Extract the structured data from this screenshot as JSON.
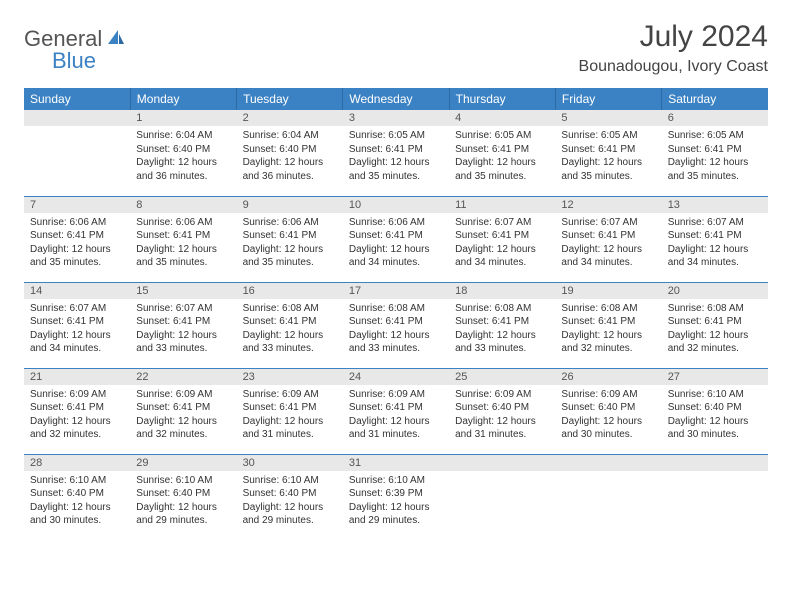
{
  "logo": {
    "word1": "General",
    "word2": "Blue"
  },
  "title": "July 2024",
  "location": "Bounadougou, Ivory Coast",
  "colors": {
    "header_bg": "#3b82c4",
    "header_text": "#ffffff",
    "daynum_bg": "#e8e8e8",
    "border": "#3b82c4",
    "body_text": "#333333",
    "logo_gray": "#555555",
    "logo_blue": "#3b82c4"
  },
  "weekdays": [
    "Sunday",
    "Monday",
    "Tuesday",
    "Wednesday",
    "Thursday",
    "Friday",
    "Saturday"
  ],
  "layout": {
    "columns": 7,
    "rows": 5,
    "first_day_col": 1
  },
  "days": [
    {
      "n": "1",
      "sunrise": "Sunrise: 6:04 AM",
      "sunset": "Sunset: 6:40 PM",
      "day": "Daylight: 12 hours and 36 minutes."
    },
    {
      "n": "2",
      "sunrise": "Sunrise: 6:04 AM",
      "sunset": "Sunset: 6:40 PM",
      "day": "Daylight: 12 hours and 36 minutes."
    },
    {
      "n": "3",
      "sunrise": "Sunrise: 6:05 AM",
      "sunset": "Sunset: 6:41 PM",
      "day": "Daylight: 12 hours and 35 minutes."
    },
    {
      "n": "4",
      "sunrise": "Sunrise: 6:05 AM",
      "sunset": "Sunset: 6:41 PM",
      "day": "Daylight: 12 hours and 35 minutes."
    },
    {
      "n": "5",
      "sunrise": "Sunrise: 6:05 AM",
      "sunset": "Sunset: 6:41 PM",
      "day": "Daylight: 12 hours and 35 minutes."
    },
    {
      "n": "6",
      "sunrise": "Sunrise: 6:05 AM",
      "sunset": "Sunset: 6:41 PM",
      "day": "Daylight: 12 hours and 35 minutes."
    },
    {
      "n": "7",
      "sunrise": "Sunrise: 6:06 AM",
      "sunset": "Sunset: 6:41 PM",
      "day": "Daylight: 12 hours and 35 minutes."
    },
    {
      "n": "8",
      "sunrise": "Sunrise: 6:06 AM",
      "sunset": "Sunset: 6:41 PM",
      "day": "Daylight: 12 hours and 35 minutes."
    },
    {
      "n": "9",
      "sunrise": "Sunrise: 6:06 AM",
      "sunset": "Sunset: 6:41 PM",
      "day": "Daylight: 12 hours and 35 minutes."
    },
    {
      "n": "10",
      "sunrise": "Sunrise: 6:06 AM",
      "sunset": "Sunset: 6:41 PM",
      "day": "Daylight: 12 hours and 34 minutes."
    },
    {
      "n": "11",
      "sunrise": "Sunrise: 6:07 AM",
      "sunset": "Sunset: 6:41 PM",
      "day": "Daylight: 12 hours and 34 minutes."
    },
    {
      "n": "12",
      "sunrise": "Sunrise: 6:07 AM",
      "sunset": "Sunset: 6:41 PM",
      "day": "Daylight: 12 hours and 34 minutes."
    },
    {
      "n": "13",
      "sunrise": "Sunrise: 6:07 AM",
      "sunset": "Sunset: 6:41 PM",
      "day": "Daylight: 12 hours and 34 minutes."
    },
    {
      "n": "14",
      "sunrise": "Sunrise: 6:07 AM",
      "sunset": "Sunset: 6:41 PM",
      "day": "Daylight: 12 hours and 34 minutes."
    },
    {
      "n": "15",
      "sunrise": "Sunrise: 6:07 AM",
      "sunset": "Sunset: 6:41 PM",
      "day": "Daylight: 12 hours and 33 minutes."
    },
    {
      "n": "16",
      "sunrise": "Sunrise: 6:08 AM",
      "sunset": "Sunset: 6:41 PM",
      "day": "Daylight: 12 hours and 33 minutes."
    },
    {
      "n": "17",
      "sunrise": "Sunrise: 6:08 AM",
      "sunset": "Sunset: 6:41 PM",
      "day": "Daylight: 12 hours and 33 minutes."
    },
    {
      "n": "18",
      "sunrise": "Sunrise: 6:08 AM",
      "sunset": "Sunset: 6:41 PM",
      "day": "Daylight: 12 hours and 33 minutes."
    },
    {
      "n": "19",
      "sunrise": "Sunrise: 6:08 AM",
      "sunset": "Sunset: 6:41 PM",
      "day": "Daylight: 12 hours and 32 minutes."
    },
    {
      "n": "20",
      "sunrise": "Sunrise: 6:08 AM",
      "sunset": "Sunset: 6:41 PM",
      "day": "Daylight: 12 hours and 32 minutes."
    },
    {
      "n": "21",
      "sunrise": "Sunrise: 6:09 AM",
      "sunset": "Sunset: 6:41 PM",
      "day": "Daylight: 12 hours and 32 minutes."
    },
    {
      "n": "22",
      "sunrise": "Sunrise: 6:09 AM",
      "sunset": "Sunset: 6:41 PM",
      "day": "Daylight: 12 hours and 32 minutes."
    },
    {
      "n": "23",
      "sunrise": "Sunrise: 6:09 AM",
      "sunset": "Sunset: 6:41 PM",
      "day": "Daylight: 12 hours and 31 minutes."
    },
    {
      "n": "24",
      "sunrise": "Sunrise: 6:09 AM",
      "sunset": "Sunset: 6:41 PM",
      "day": "Daylight: 12 hours and 31 minutes."
    },
    {
      "n": "25",
      "sunrise": "Sunrise: 6:09 AM",
      "sunset": "Sunset: 6:40 PM",
      "day": "Daylight: 12 hours and 31 minutes."
    },
    {
      "n": "26",
      "sunrise": "Sunrise: 6:09 AM",
      "sunset": "Sunset: 6:40 PM",
      "day": "Daylight: 12 hours and 30 minutes."
    },
    {
      "n": "27",
      "sunrise": "Sunrise: 6:10 AM",
      "sunset": "Sunset: 6:40 PM",
      "day": "Daylight: 12 hours and 30 minutes."
    },
    {
      "n": "28",
      "sunrise": "Sunrise: 6:10 AM",
      "sunset": "Sunset: 6:40 PM",
      "day": "Daylight: 12 hours and 30 minutes."
    },
    {
      "n": "29",
      "sunrise": "Sunrise: 6:10 AM",
      "sunset": "Sunset: 6:40 PM",
      "day": "Daylight: 12 hours and 29 minutes."
    },
    {
      "n": "30",
      "sunrise": "Sunrise: 6:10 AM",
      "sunset": "Sunset: 6:40 PM",
      "day": "Daylight: 12 hours and 29 minutes."
    },
    {
      "n": "31",
      "sunrise": "Sunrise: 6:10 AM",
      "sunset": "Sunset: 6:39 PM",
      "day": "Daylight: 12 hours and 29 minutes."
    }
  ]
}
